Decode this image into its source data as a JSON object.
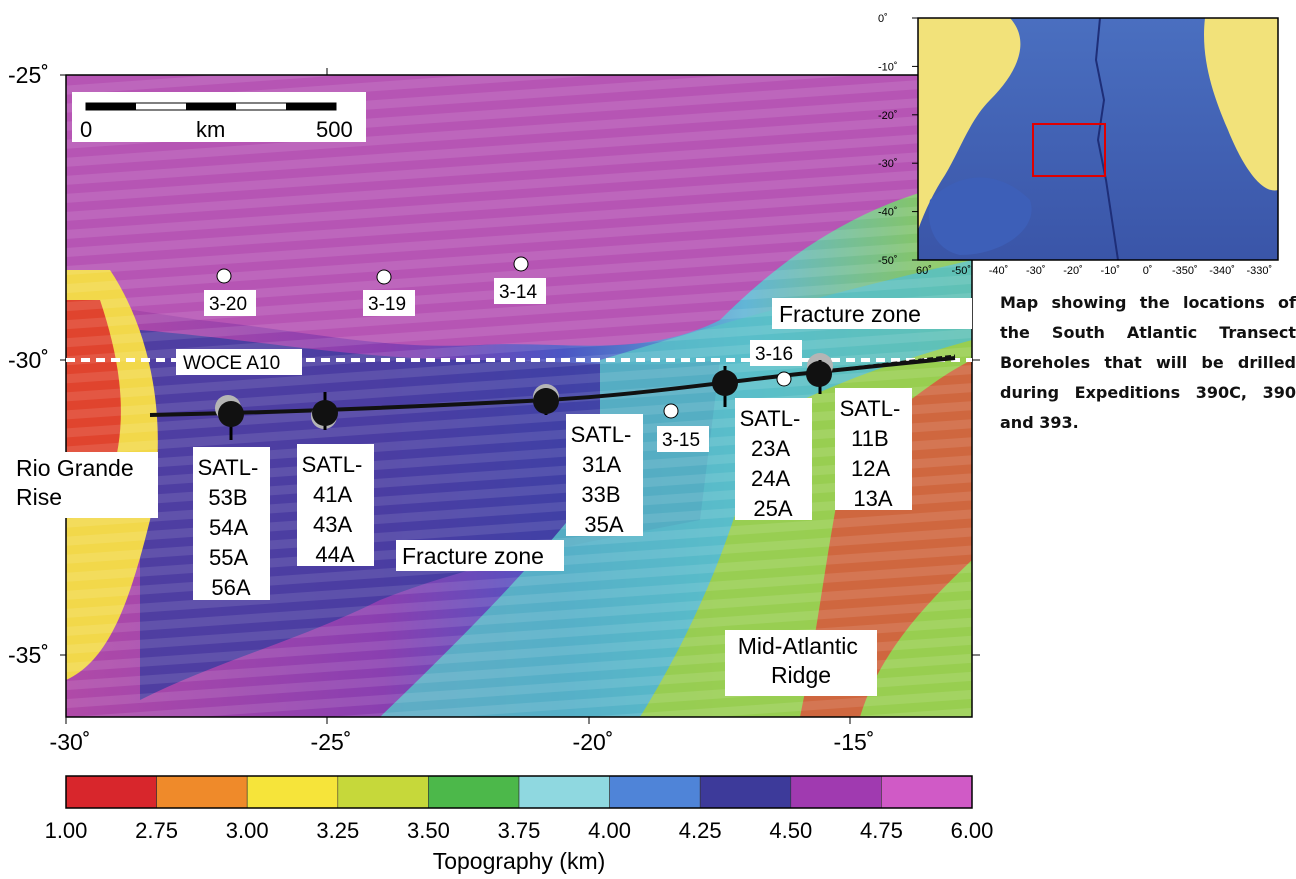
{
  "main_map": {
    "y_ticks": [
      {
        "label": "-25˚",
        "value": -25
      },
      {
        "label": "-30˚",
        "value": -30
      },
      {
        "label": "-35˚",
        "value": -35
      }
    ],
    "x_ticks": [
      {
        "label": "-30˚",
        "value": -30
      },
      {
        "label": "-25˚",
        "value": -25
      },
      {
        "label": "-20˚",
        "value": -20
      },
      {
        "label": "-15˚",
        "value": -15
      }
    ],
    "scale_bar": {
      "start": "0",
      "unit": "km",
      "end": "500"
    },
    "features": {
      "woce": "WOCE A10",
      "fracture_zone_north": "Fracture zone",
      "fracture_zone_south": "Fracture zone",
      "rio_grande": [
        "Rio Grande",
        "Rise"
      ],
      "ridge": [
        "Mid-Atlantic",
        "Ridge"
      ]
    },
    "stations": [
      "3-20",
      "3-19",
      "3-14",
      "3-15",
      "3-16"
    ],
    "site_groups": [
      {
        "lines": [
          "SATL-",
          "53B",
          "54A",
          "55A",
          "56A"
        ]
      },
      {
        "lines": [
          "SATL-",
          "41A",
          "43A",
          "44A"
        ]
      },
      {
        "lines": [
          "SATL-",
          "31A",
          "33B",
          "35A"
        ]
      },
      {
        "lines": [
          "SATL-",
          "23A",
          "24A",
          "25A"
        ]
      },
      {
        "lines": [
          "SATL-",
          "11B",
          "12A",
          "13A"
        ]
      }
    ]
  },
  "colorbar": {
    "ticks": [
      "1.00",
      "2.75",
      "3.00",
      "3.25",
      "3.50",
      "3.75",
      "4.00",
      "4.25",
      "4.50",
      "4.75",
      "6.00"
    ],
    "colors": [
      "#d8262c",
      "#ef8a2a",
      "#f6e43a",
      "#c6d83a",
      "#4cb84a",
      "#8fd8e0",
      "#4f84d8",
      "#3d3a9a",
      "#a03ab0",
      "#d05ac6"
    ],
    "label": "Topography (km)"
  },
  "inset": {
    "y_ticks": [
      "0˚",
      "-10˚",
      "-20˚",
      "-30˚",
      "-40˚",
      "-50˚"
    ],
    "x_ticks": [
      "60˚",
      "-50˚",
      "-40˚",
      "-30˚",
      "-20˚",
      "-10˚",
      "0˚",
      "-350˚",
      "-340˚",
      "-330˚"
    ]
  },
  "caption": "Map showing the locations of the South Atlantic Transect Boreholes that will be drilled during Expeditions 390C, 390 and 393."
}
